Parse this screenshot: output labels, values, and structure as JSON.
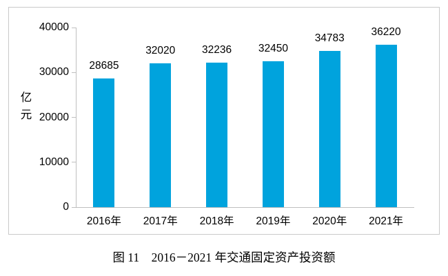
{
  "figure": {
    "caption": "图 11　2016－2021 年交通固定资产投资额"
  },
  "chart_data": {
    "type": "bar",
    "title": "",
    "xlabel": "",
    "ylabel": "亿元",
    "categories": [
      "2016年",
      "2017年",
      "2018年",
      "2019年",
      "2020年",
      "2021年"
    ],
    "values": [
      28685,
      32020,
      32236,
      32450,
      34783,
      36220
    ],
    "value_labels": [
      "28685",
      "32020",
      "32236",
      "32450",
      "34783",
      "36220"
    ],
    "ylim": [
      0,
      40000
    ],
    "yticks": [
      0,
      10000,
      20000,
      30000,
      40000
    ],
    "ytick_labels": [
      "0",
      "10000",
      "20000",
      "30000",
      "40000"
    ],
    "grid": false,
    "legend": "none",
    "bar_color": "#00a3dd",
    "axis_color": "#bfbfbf",
    "frame_color": "#c9c9c9",
    "text_color": "#000000"
  }
}
